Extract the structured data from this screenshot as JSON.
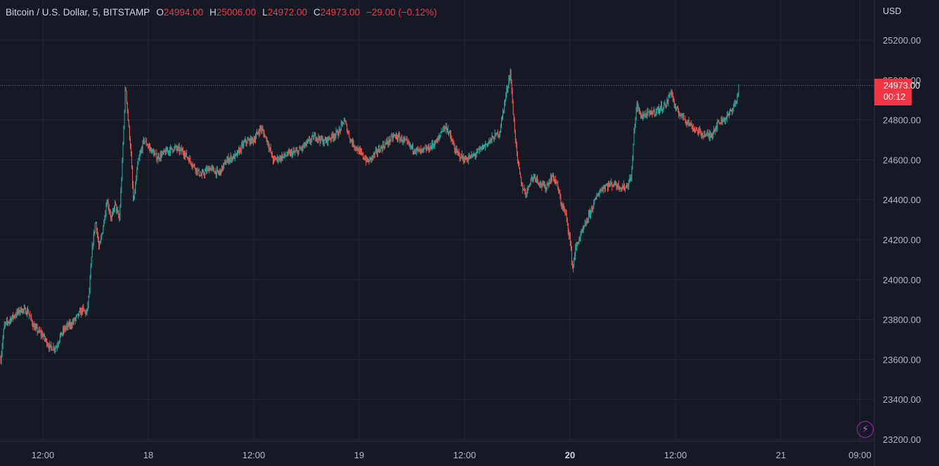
{
  "legend": {
    "symbol": "Bitcoin / U.S. Dollar, 5, BITSTAMP",
    "o_label": "O",
    "o_value": "24994.00",
    "h_label": "H",
    "h_value": "25006.00",
    "l_label": "L",
    "l_value": "24972.00",
    "c_label": "C",
    "c_value": "24973.00",
    "change": "−29.00 (−0.12%)"
  },
  "currency": "USD",
  "last_price": {
    "value": "24973.00",
    "countdown": "00:12"
  },
  "colors": {
    "background": "#151924",
    "up": "#26a69a",
    "down": "#ef5350",
    "grid": "#242833",
    "text": "#b2b5be",
    "price_tag": "#f23645"
  },
  "icons": {
    "bolt": "lightning-icon"
  },
  "chart_data": {
    "type": "candlestick",
    "interval": "5",
    "ylim": [
      23200,
      25300
    ],
    "y_ticks": [
      "25200.00",
      "25000.00",
      "24800.00",
      "24600.00",
      "24400.00",
      "24200.00",
      "24000.00",
      "23800.00",
      "23600.00",
      "23400.00",
      "23200.00"
    ],
    "y_tick_values": [
      25200,
      25000,
      24800,
      24600,
      24400,
      24200,
      24000,
      23800,
      23600,
      23400,
      23200
    ],
    "x_ticks": [
      {
        "label": "12:00",
        "hours": 12,
        "bold": false
      },
      {
        "label": "18",
        "hours": 24,
        "bold": false
      },
      {
        "label": "12:00",
        "hours": 36,
        "bold": false
      },
      {
        "label": "19",
        "hours": 48,
        "bold": false
      },
      {
        "label": "12:00",
        "hours": 60,
        "bold": false
      },
      {
        "label": "20",
        "hours": 72,
        "bold": true
      },
      {
        "label": "12:00",
        "hours": 84,
        "bold": false
      },
      {
        "label": "21",
        "hours": 96,
        "bold": false
      },
      {
        "label": "09:00",
        "hours": 105,
        "bold": false
      }
    ],
    "xlim_hours": [
      7.2,
      106.5
    ],
    "last_close": 24973,
    "path_points": [
      [
        7.2,
        23600
      ],
      [
        7.6,
        23770
      ],
      [
        8.5,
        23810
      ],
      [
        9.5,
        23850
      ],
      [
        10.3,
        23840
      ],
      [
        11.0,
        23760
      ],
      [
        12.0,
        23720
      ],
      [
        12.8,
        23660
      ],
      [
        13.5,
        23660
      ],
      [
        14.0,
        23720
      ],
      [
        14.6,
        23760
      ],
      [
        15.3,
        23780
      ],
      [
        16.0,
        23820
      ],
      [
        16.5,
        23850
      ],
      [
        17.0,
        23830
      ],
      [
        17.3,
        23950
      ],
      [
        17.6,
        24150
      ],
      [
        18.0,
        24300
      ],
      [
        18.4,
        24150
      ],
      [
        18.8,
        24250
      ],
      [
        19.3,
        24400
      ],
      [
        19.8,
        24300
      ],
      [
        20.2,
        24380
      ],
      [
        20.7,
        24300
      ],
      [
        21.0,
        24550
      ],
      [
        21.4,
        24980
      ],
      [
        21.7,
        24800
      ],
      [
        22.0,
        24650
      ],
      [
        22.3,
        24380
      ],
      [
        22.8,
        24580
      ],
      [
        23.5,
        24700
      ],
      [
        24.3,
        24650
      ],
      [
        25.0,
        24610
      ],
      [
        26.0,
        24640
      ],
      [
        27.0,
        24660
      ],
      [
        28.0,
        24640
      ],
      [
        29.0,
        24580
      ],
      [
        30.0,
        24520
      ],
      [
        31.0,
        24560
      ],
      [
        32.0,
        24530
      ],
      [
        33.0,
        24600
      ],
      [
        34.0,
        24620
      ],
      [
        35.0,
        24690
      ],
      [
        36.0,
        24700
      ],
      [
        36.8,
        24760
      ],
      [
        37.5,
        24700
      ],
      [
        38.2,
        24600
      ],
      [
        39.0,
        24610
      ],
      [
        40.0,
        24630
      ],
      [
        41.0,
        24640
      ],
      [
        42.0,
        24680
      ],
      [
        43.0,
        24720
      ],
      [
        44.0,
        24690
      ],
      [
        45.0,
        24720
      ],
      [
        45.7,
        24740
      ],
      [
        46.3,
        24800
      ],
      [
        47.0,
        24700
      ],
      [
        48.0,
        24640
      ],
      [
        49.0,
        24590
      ],
      [
        50.0,
        24640
      ],
      [
        51.0,
        24680
      ],
      [
        52.0,
        24720
      ],
      [
        53.0,
        24700
      ],
      [
        54.0,
        24660
      ],
      [
        55.0,
        24640
      ],
      [
        56.0,
        24660
      ],
      [
        57.0,
        24700
      ],
      [
        57.5,
        24760
      ],
      [
        58.0,
        24760
      ],
      [
        59.0,
        24640
      ],
      [
        60.0,
        24600
      ],
      [
        61.0,
        24620
      ],
      [
        62.0,
        24660
      ],
      [
        63.0,
        24700
      ],
      [
        64.0,
        24740
      ],
      [
        64.6,
        24900
      ],
      [
        65.2,
        25040
      ],
      [
        65.6,
        24800
      ],
      [
        66.0,
        24600
      ],
      [
        66.5,
        24470
      ],
      [
        67.0,
        24430
      ],
      [
        67.5,
        24500
      ],
      [
        68.0,
        24520
      ],
      [
        68.6,
        24480
      ],
      [
        69.2,
        24460
      ],
      [
        70.0,
        24520
      ],
      [
        70.5,
        24480
      ],
      [
        71.0,
        24380
      ],
      [
        71.5,
        24330
      ],
      [
        72.0,
        24200
      ],
      [
        72.3,
        24050
      ],
      [
        72.6,
        24150
      ],
      [
        73.0,
        24200
      ],
      [
        73.8,
        24280
      ],
      [
        74.5,
        24360
      ],
      [
        75.3,
        24440
      ],
      [
        76.0,
        24470
      ],
      [
        77.0,
        24480
      ],
      [
        77.5,
        24470
      ],
      [
        78.0,
        24460
      ],
      [
        78.5,
        24470
      ],
      [
        79.0,
        24520
      ],
      [
        79.3,
        24750
      ],
      [
        79.6,
        24880
      ],
      [
        80.0,
        24820
      ],
      [
        81.0,
        24830
      ],
      [
        82.0,
        24850
      ],
      [
        83.0,
        24880
      ],
      [
        83.5,
        24950
      ],
      [
        84.0,
        24850
      ],
      [
        85.0,
        24810
      ],
      [
        86.0,
        24760
      ],
      [
        87.0,
        24730
      ],
      [
        88.0,
        24720
      ],
      [
        88.5,
        24760
      ],
      [
        89.0,
        24790
      ],
      [
        90.0,
        24820
      ],
      [
        90.5,
        24860
      ],
      [
        91.0,
        24900
      ],
      [
        91.2,
        24973
      ]
    ]
  }
}
